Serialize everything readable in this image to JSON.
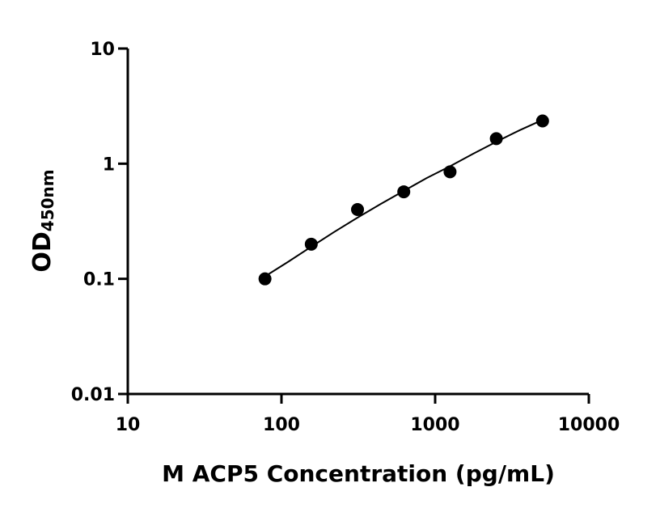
{
  "chart_data": {
    "type": "scatter",
    "xlabel": "M ACP5 Concentration (pg/mL)",
    "ylabel": "OD",
    "ylabel_sub": "450nm",
    "x_log": true,
    "y_log": true,
    "xlim": [
      10,
      10000
    ],
    "xticks": [
      10,
      100,
      1000,
      10000
    ],
    "ylim": [
      0.01,
      10
    ],
    "yticks": [
      0.01,
      0.1,
      1,
      10
    ],
    "series": [
      {
        "color": "#000000",
        "x": [
          78.125,
          156.25,
          312.5,
          625,
          1250,
          2500,
          5000
        ],
        "values": [
          0.1,
          0.2,
          0.4,
          0.57,
          0.85,
          1.65,
          2.35
        ]
      }
    ],
    "fit": {
      "color": "#000000",
      "x": [
        78.125,
        110,
        156.25,
        220,
        312.5,
        440,
        625,
        880,
        1250,
        1770,
        2500,
        3540,
        5000
      ],
      "values": [
        0.105,
        0.14,
        0.19,
        0.255,
        0.34,
        0.445,
        0.58,
        0.75,
        0.95,
        1.22,
        1.55,
        1.95,
        2.4
      ]
    }
  }
}
